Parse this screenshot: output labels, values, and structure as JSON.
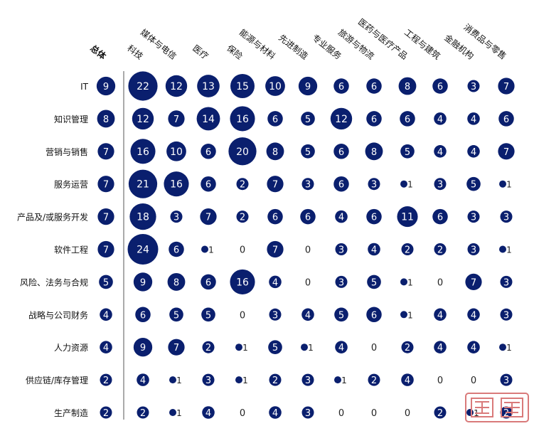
{
  "chart_data": {
    "type": "bubble-matrix",
    "columns": [
      "总体",
      "科技",
      "媒体与电信",
      "医疗",
      "保险",
      "能源与材料",
      "先进制造",
      "专业服务",
      "旅游与物流",
      "医药与医疗产品",
      "工程与建筑",
      "金融机构",
      "消费品与零售"
    ],
    "rows": [
      "IT",
      "知识管理",
      "营销与销售",
      "服务运营",
      "产品及/或服务开发",
      "软件工程",
      "风险、法务与合规",
      "战略与公司财务",
      "人力资源",
      "供应链/库存管理",
      "生产制造"
    ],
    "values": [
      [
        9,
        22,
        12,
        13,
        15,
        10,
        9,
        6,
        6,
        8,
        6,
        3,
        7
      ],
      [
        8,
        12,
        7,
        14,
        16,
        6,
        5,
        12,
        6,
        6,
        4,
        4,
        6
      ],
      [
        7,
        16,
        10,
        6,
        20,
        8,
        5,
        6,
        8,
        5,
        4,
        4,
        7
      ],
      [
        7,
        21,
        16,
        6,
        2,
        7,
        3,
        6,
        3,
        1,
        3,
        5,
        1
      ],
      [
        7,
        18,
        3,
        7,
        2,
        6,
        6,
        4,
        6,
        11,
        6,
        3,
        3
      ],
      [
        7,
        24,
        6,
        1,
        0,
        7,
        0,
        3,
        4,
        2,
        2,
        3,
        1
      ],
      [
        5,
        9,
        8,
        6,
        16,
        4,
        0,
        3,
        5,
        1,
        0,
        7,
        3
      ],
      [
        4,
        6,
        5,
        5,
        0,
        3,
        4,
        5,
        6,
        1,
        4,
        4,
        3
      ],
      [
        4,
        9,
        7,
        2,
        1,
        5,
        1,
        4,
        0,
        2,
        4,
        4,
        1
      ],
      [
        2,
        4,
        1,
        3,
        1,
        2,
        3,
        1,
        2,
        4,
        0,
        0,
        3
      ],
      [
        2,
        2,
        1,
        4,
        0,
        4,
        3,
        0,
        0,
        0,
        2,
        1,
        2
      ]
    ],
    "color": "#0a1f6e",
    "text_color": "#ffffff",
    "zero_text_color": "#222222"
  },
  "watermark": "iyiou"
}
